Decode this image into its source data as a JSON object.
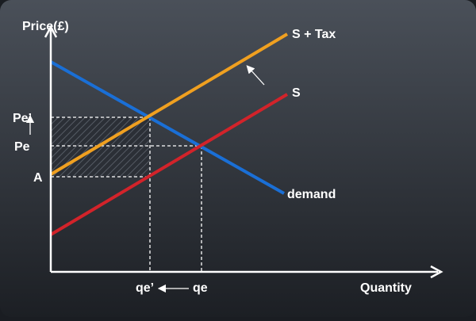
{
  "axes": {
    "y_label": "Price(£)",
    "x_label": "Quantity"
  },
  "curves": {
    "demand": {
      "label": "demand",
      "color": "#1a6fd6"
    },
    "supply": {
      "label": "S",
      "color": "#d2232a"
    },
    "supply_tax": {
      "label": "S + Tax",
      "color": "#f0a020"
    }
  },
  "price_labels": {
    "pe_prime": "Pe’",
    "pe": "Pe",
    "a": "A"
  },
  "quantity_labels": {
    "qe_prime": "qe’",
    "qe": "qe"
  },
  "colors": {
    "background_top": "#4a5059",
    "background_bottom": "#1c1f24",
    "axis": "#ffffff",
    "guide": "#ffffff",
    "tax_area_hatch": "#3a3f47"
  }
}
